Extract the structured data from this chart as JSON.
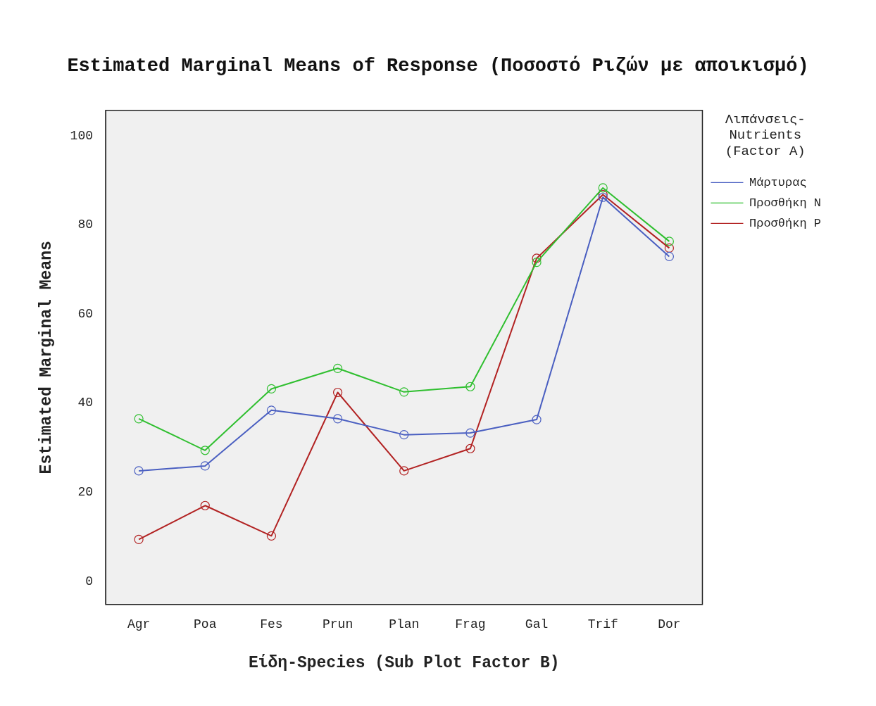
{
  "chart_data": {
    "type": "line",
    "title": "Estimated Marginal Means of Response (Ποσοστό Ριζών με αποικισμό)",
    "xlabel": "Είδη-Species (Sub Plot Factor B)",
    "ylabel": "Estimated Marginal Means",
    "legend_title": "Λιπάνσεις-Nutrients (Factor A)",
    "categories": [
      "Agr",
      "Poa",
      "Fes",
      "Prun",
      "Plan",
      "Frag",
      "Gal",
      "Trif",
      "Dor"
    ],
    "series": [
      {
        "name": "Μάρτυρας",
        "color": "#4a5fc1",
        "values": [
          24.8,
          25.9,
          38.4,
          36.5,
          32.9,
          33.3,
          36.3,
          86.2,
          72.9
        ]
      },
      {
        "name": "Προσθήκη N",
        "color": "#2fbf2f",
        "values": [
          36.5,
          29.4,
          43.2,
          47.8,
          42.5,
          43.7,
          71.6,
          88.3,
          76.3
        ]
      },
      {
        "name": "Προσθήκη P",
        "color": "#b22222",
        "values": [
          9.4,
          17.0,
          10.2,
          42.4,
          24.8,
          29.8,
          72.5,
          86.8,
          74.8
        ]
      }
    ],
    "ylim": [
      -5.2,
      105.7
    ],
    "yticks": [
      0,
      20,
      40,
      60,
      80,
      100
    ],
    "grid": false,
    "legend": "right",
    "marker": "circle",
    "line_style": "solid"
  }
}
